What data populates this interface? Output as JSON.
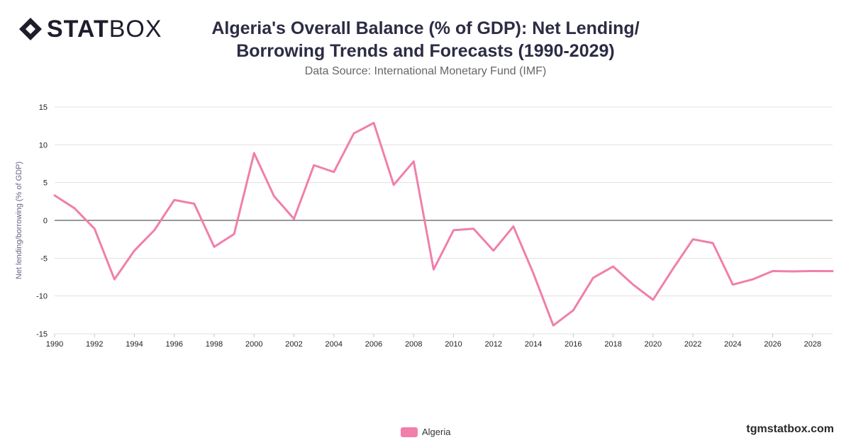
{
  "brand": {
    "logo_bold": "STAT",
    "logo_light": "BOX",
    "site": "tgmstatbox.com"
  },
  "header": {
    "title_line1": "Algeria's Overall Balance (% of GDP): Net Lending/",
    "title_line2": "Borrowing Trends and Forecasts (1990-2029)",
    "subtitle": "Data Source: International Monetary Fund (IMF)"
  },
  "colors": {
    "series": "#f07fab",
    "grid": "#e0e0e0",
    "zero_line": "#333333",
    "text": "#222222"
  },
  "chart_data": {
    "type": "line",
    "title": "Algeria's Overall Balance (% of GDP): Net Lending/ Borrowing Trends and Forecasts (1990-2029)",
    "subtitle": "Data Source: International Monetary Fund (IMF)",
    "ylabel": "Net lending/borrowing (% of GDP)",
    "xlabel": "",
    "ylim": [
      -15,
      15
    ],
    "yticks": [
      -15,
      -10,
      -5,
      0,
      5,
      10,
      15
    ],
    "xlim": [
      1990,
      2029
    ],
    "xticks": [
      1990,
      1992,
      1994,
      1996,
      1998,
      2000,
      2002,
      2004,
      2006,
      2008,
      2010,
      2012,
      2014,
      2016,
      2018,
      2020,
      2022,
      2024,
      2026,
      2028
    ],
    "grid": true,
    "legend": "bottom-center",
    "x": [
      1990,
      1991,
      1992,
      1993,
      1994,
      1995,
      1996,
      1997,
      1998,
      1999,
      2000,
      2001,
      2002,
      2003,
      2004,
      2005,
      2006,
      2007,
      2008,
      2009,
      2010,
      2011,
      2012,
      2013,
      2014,
      2015,
      2016,
      2017,
      2018,
      2019,
      2020,
      2021,
      2022,
      2023,
      2024,
      2025,
      2026,
      2027,
      2028,
      2029
    ],
    "series": [
      {
        "name": "Algeria",
        "values": [
          3.3,
          1.6,
          -1.1,
          -7.8,
          -4.0,
          -1.3,
          2.7,
          2.2,
          -3.5,
          -1.8,
          8.9,
          3.2,
          0.2,
          7.3,
          6.4,
          11.5,
          12.9,
          4.7,
          7.8,
          -6.5,
          -1.3,
          -1.1,
          -4.0,
          -0.8,
          -7.0,
          -13.9,
          -11.9,
          -7.6,
          -6.1,
          -8.5,
          -10.5,
          -6.4,
          -2.5,
          -3.0,
          -8.5,
          -7.8,
          -6.7,
          -6.75,
          -6.7,
          -6.72
        ]
      }
    ]
  }
}
